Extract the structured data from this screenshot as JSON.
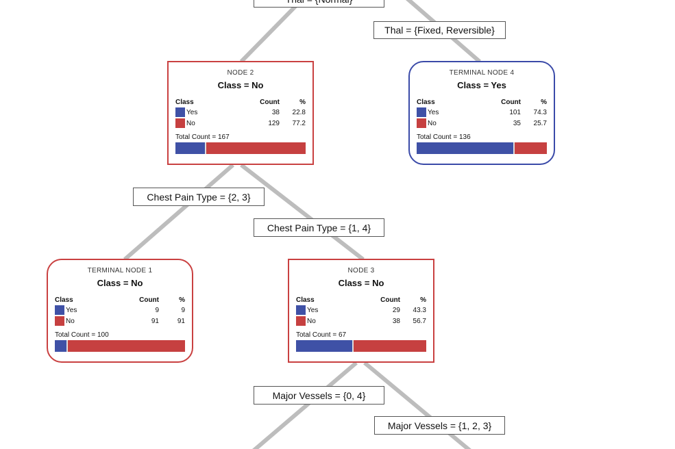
{
  "colors": {
    "yes": "#3f51a6",
    "no": "#c64040",
    "line": "#bdbdbd"
  },
  "splits": {
    "thal_normal": "Thal = {Normal}",
    "thal_fixed": "Thal = {Fixed, Reversible}",
    "cp_23": "Chest Pain Type = {2, 3}",
    "cp_14": "Chest Pain Type = {1, 4}",
    "mv_04": "Major Vessels = {0, 4}",
    "mv_123": "Major Vessels = {1, 2, 3}"
  },
  "headers": {
    "class": "Class",
    "count": "Count",
    "pct": "%"
  },
  "nodes": {
    "node2": {
      "title": "NODE 2",
      "class": "Class = No",
      "yes_label": "Yes",
      "yes_count": "38",
      "yes_pct": "22.8",
      "no_label": "No",
      "no_count": "129",
      "no_pct": "77.2",
      "total": "Total Count = 167",
      "yes_frac": 0.228
    },
    "term4": {
      "title": "TERMINAL NODE 4",
      "class": "Class = Yes",
      "yes_label": "Yes",
      "yes_count": "101",
      "yes_pct": "74.3",
      "no_label": "No",
      "no_count": "35",
      "no_pct": "25.7",
      "total": "Total Count = 136",
      "yes_frac": 0.743
    },
    "term1": {
      "title": "TERMINAL NODE 1",
      "class": "Class = No",
      "yes_label": "Yes",
      "yes_count": "9",
      "yes_pct": "9",
      "no_label": "No",
      "no_count": "91",
      "no_pct": "91",
      "total": "Total Count = 100",
      "yes_frac": 0.09
    },
    "node3": {
      "title": "NODE 3",
      "class": "Class = No",
      "yes_label": "Yes",
      "yes_count": "29",
      "yes_pct": "43.3",
      "no_label": "No",
      "no_count": "38",
      "no_pct": "56.7",
      "total": "Total Count = 67",
      "yes_frac": 0.433
    }
  }
}
